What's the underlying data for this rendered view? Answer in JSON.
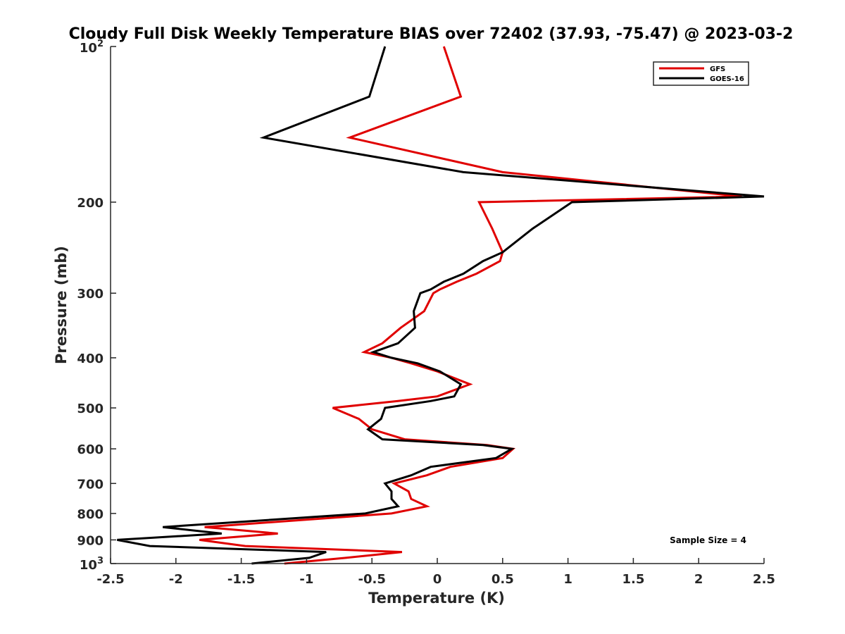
{
  "chart_data": {
    "type": "line",
    "title": "Cloudy Full Disk Weekly Temperature BIAS over 72402 (37.93, -75.47) @ 2023-03-2",
    "xlabel": "Temperature (K)",
    "ylabel": "Pressure (mb)",
    "xlim": [
      -2.5,
      2.5
    ],
    "ylim": [
      100,
      1000
    ],
    "y_scale": "log",
    "y_reversed": true,
    "grid": false,
    "legend_position": "top-right",
    "x_ticks": [
      -2.5,
      -2,
      -1.5,
      -1,
      -0.5,
      0,
      0.5,
      1,
      1.5,
      2,
      2.5
    ],
    "x_tick_labels": [
      "-2.5",
      "-2",
      "-1.5",
      "-1",
      "-0.5",
      "0",
      "0.5",
      "1",
      "1.5",
      "2",
      "2.5"
    ],
    "y_ticks": [
      200,
      300,
      400,
      500,
      600,
      700,
      800,
      900
    ],
    "y_tick_labels": [
      "200",
      "300",
      "400",
      "500",
      "600",
      "700",
      "800",
      "900"
    ],
    "y_pow_ticks": [
      {
        "value": 100,
        "base": "10",
        "exp": "2"
      },
      {
        "value": 1000,
        "base": "10",
        "exp": "3"
      }
    ],
    "annotation": "Sample Size = 4",
    "series": [
      {
        "name": "GFS",
        "color": "#e00000",
        "points": [
          [
            0.05,
            100
          ],
          [
            0.18,
            125
          ],
          [
            -0.67,
            150
          ],
          [
            0.5,
            175
          ],
          [
            2.33,
            195
          ],
          [
            0.32,
            200
          ],
          [
            0.42,
            225
          ],
          [
            0.5,
            250
          ],
          [
            0.48,
            260
          ],
          [
            0.3,
            275
          ],
          [
            0.15,
            285
          ],
          [
            0.02,
            295
          ],
          [
            -0.03,
            300
          ],
          [
            -0.1,
            325
          ],
          [
            -0.28,
            350
          ],
          [
            -0.42,
            375
          ],
          [
            -0.56,
            390
          ],
          [
            -0.35,
            400
          ],
          [
            -0.2,
            410
          ],
          [
            0.0,
            425
          ],
          [
            0.25,
            450
          ],
          [
            0.0,
            475
          ],
          [
            -0.3,
            485
          ],
          [
            -0.8,
            500
          ],
          [
            -0.6,
            525
          ],
          [
            -0.5,
            550
          ],
          [
            -0.25,
            575
          ],
          [
            0.38,
            590
          ],
          [
            0.58,
            600
          ],
          [
            0.5,
            625
          ],
          [
            0.1,
            650
          ],
          [
            -0.08,
            675
          ],
          [
            -0.33,
            700
          ],
          [
            -0.22,
            725
          ],
          [
            -0.2,
            750
          ],
          [
            -0.08,
            775
          ],
          [
            -0.35,
            800
          ],
          [
            -1.78,
            850
          ],
          [
            -1.22,
            875
          ],
          [
            -1.82,
            900
          ],
          [
            -1.47,
            925
          ],
          [
            -0.27,
            950
          ],
          [
            -0.7,
            975
          ],
          [
            -1.17,
            1000
          ]
        ]
      },
      {
        "name": "GOES-16",
        "color": "#000000",
        "points": [
          [
            -0.4,
            100
          ],
          [
            -0.52,
            125
          ],
          [
            -1.33,
            150
          ],
          [
            0.2,
            175
          ],
          [
            2.5,
            195
          ],
          [
            1.03,
            200
          ],
          [
            0.73,
            225
          ],
          [
            0.5,
            250
          ],
          [
            0.35,
            260
          ],
          [
            0.2,
            275
          ],
          [
            0.05,
            285
          ],
          [
            -0.05,
            295
          ],
          [
            -0.13,
            300
          ],
          [
            -0.18,
            325
          ],
          [
            -0.17,
            350
          ],
          [
            -0.3,
            375
          ],
          [
            -0.49,
            390
          ],
          [
            -0.35,
            400
          ],
          [
            -0.15,
            410
          ],
          [
            0.02,
            425
          ],
          [
            0.18,
            450
          ],
          [
            0.13,
            475
          ],
          [
            -0.05,
            485
          ],
          [
            -0.4,
            500
          ],
          [
            -0.43,
            525
          ],
          [
            -0.53,
            550
          ],
          [
            -0.42,
            575
          ],
          [
            0.35,
            590
          ],
          [
            0.57,
            600
          ],
          [
            0.45,
            625
          ],
          [
            -0.05,
            650
          ],
          [
            -0.2,
            675
          ],
          [
            -0.4,
            700
          ],
          [
            -0.35,
            725
          ],
          [
            -0.35,
            750
          ],
          [
            -0.3,
            775
          ],
          [
            -0.55,
            800
          ],
          [
            -2.1,
            850
          ],
          [
            -1.65,
            875
          ],
          [
            -2.45,
            900
          ],
          [
            -2.2,
            925
          ],
          [
            -0.85,
            950
          ],
          [
            -0.98,
            975
          ],
          [
            -1.42,
            1000
          ]
        ]
      }
    ]
  }
}
